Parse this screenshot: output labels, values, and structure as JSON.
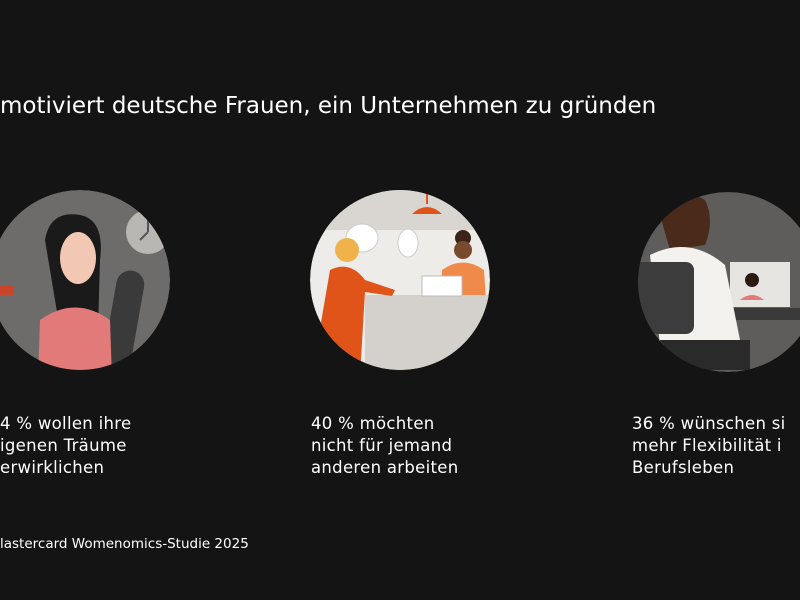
{
  "title": "motiviert deutsche Frauen, ein Unternehmen zu gründen",
  "items": [
    {
      "lines": [
        "4 % wollen ihre",
        "igenen Träume",
        "erwirklichen"
      ]
    },
    {
      "lines": [
        "40 % möchten",
        "nicht für jemand",
        "anderen arbeiten"
      ]
    },
    {
      "lines": [
        "36 % wünschen si",
        "mehr Flexibilität i",
        "Berufsleben"
      ]
    }
  ],
  "source": "lastercard Womenomics-Studie 2025"
}
